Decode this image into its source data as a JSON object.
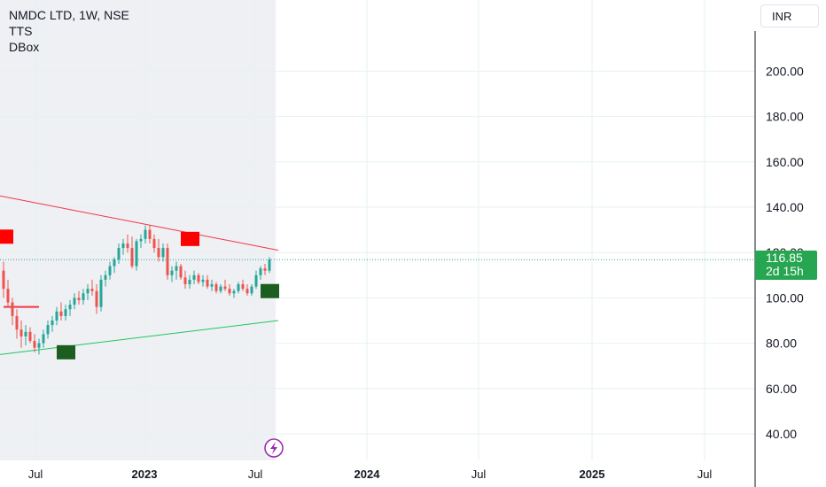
{
  "legend": {
    "title": "NMDC LTD, 1W, NSE",
    "indicator1": "TTS",
    "indicator2": "DBox"
  },
  "currency": "INR",
  "last_price": {
    "value": "116.85",
    "countdown": "2d 15h"
  },
  "colors": {
    "up": "#26a69a",
    "down": "#ef5350",
    "resistance": "#f23645",
    "support": "#22c55e",
    "box_red": "#ff0000",
    "box_green": "#1b5e20",
    "price_tag": "#26a650",
    "shade": "#eef0f3"
  },
  "icons": {
    "footer": "lightning-bolt-icon"
  },
  "chart_data": {
    "type": "candlestick",
    "y_ticks": [
      "40.00",
      "60.00",
      "80.00",
      "100.00",
      "120.00",
      "140.00",
      "160.00",
      "180.00",
      "200.00"
    ],
    "x_ticks": [
      "Jul",
      "2023",
      "Jul",
      "2024",
      "Jul",
      "2025",
      "Jul"
    ],
    "ylim": [
      30,
      210
    ],
    "last_price": 116.85,
    "candles": [
      [
        112,
        116,
        100,
        104
      ],
      [
        104,
        108,
        96,
        98
      ],
      [
        98,
        100,
        88,
        92
      ],
      [
        92,
        95,
        82,
        86
      ],
      [
        86,
        90,
        78,
        83
      ],
      [
        83,
        88,
        79,
        85
      ],
      [
        85,
        87,
        80,
        81
      ],
      [
        81,
        84,
        76,
        78
      ],
      [
        78,
        82,
        75,
        80
      ],
      [
        80,
        86,
        78,
        84
      ],
      [
        84,
        90,
        82,
        88
      ],
      [
        88,
        92,
        85,
        90
      ],
      [
        90,
        96,
        88,
        94
      ],
      [
        94,
        98,
        90,
        92
      ],
      [
        92,
        97,
        90,
        95
      ],
      [
        95,
        99,
        92,
        97
      ],
      [
        97,
        102,
        95,
        100
      ],
      [
        100,
        103,
        97,
        99
      ],
      [
        99,
        104,
        97,
        102
      ],
      [
        102,
        106,
        99,
        104
      ],
      [
        104,
        108,
        101,
        103
      ],
      [
        103,
        106,
        93,
        96
      ],
      [
        96,
        110,
        94,
        108
      ],
      [
        108,
        112,
        105,
        110
      ],
      [
        110,
        116,
        108,
        114
      ],
      [
        114,
        118,
        111,
        117
      ],
      [
        117,
        124,
        115,
        122
      ],
      [
        122,
        126,
        119,
        124
      ],
      [
        124,
        128,
        120,
        122
      ],
      [
        122,
        127,
        113,
        114
      ],
      [
        114,
        126,
        112,
        125
      ],
      [
        125,
        128,
        122,
        126
      ],
      [
        126,
        132,
        124,
        130
      ],
      [
        130,
        132,
        124,
        126
      ],
      [
        126,
        128,
        120,
        122
      ],
      [
        122,
        126,
        116,
        118
      ],
      [
        118,
        124,
        116,
        122
      ],
      [
        122,
        124,
        108,
        110
      ],
      [
        110,
        114,
        107,
        112
      ],
      [
        112,
        116,
        108,
        114
      ],
      [
        114,
        115,
        108,
        109
      ],
      [
        109,
        112,
        104,
        106
      ],
      [
        106,
        110,
        104,
        108
      ],
      [
        108,
        112,
        106,
        110
      ],
      [
        110,
        111,
        106,
        107
      ],
      [
        107,
        110,
        105,
        108
      ],
      [
        108,
        110,
        104,
        105
      ],
      [
        105,
        108,
        103,
        106
      ],
      [
        106,
        107,
        102,
        103
      ],
      [
        103,
        106,
        102,
        105
      ],
      [
        105,
        108,
        103,
        104
      ],
      [
        104,
        106,
        101,
        102
      ],
      [
        102,
        104,
        100,
        103
      ],
      [
        103,
        107,
        102,
        106
      ],
      [
        106,
        108,
        103,
        104
      ],
      [
        104,
        106,
        101,
        102
      ],
      [
        102,
        106,
        101,
        105
      ],
      [
        105,
        112,
        104,
        110
      ],
      [
        110,
        114,
        108,
        113
      ],
      [
        113,
        115,
        110,
        112
      ],
      [
        112,
        118,
        111,
        117
      ]
    ],
    "resistance_line": [
      [
        0,
        145
      ],
      [
        60,
        121
      ]
    ],
    "support_line": [
      [
        0,
        75
      ],
      [
        60,
        90
      ]
    ],
    "hline": {
      "y": 96,
      "from": 0,
      "to": 8
    },
    "boxes": [
      {
        "color": "red",
        "at": 0,
        "y": 127
      },
      {
        "color": "red",
        "at": 42,
        "y": 126
      },
      {
        "color": "green",
        "at": 14,
        "y": 76
      },
      {
        "color": "green",
        "at": 60,
        "y": 103
      }
    ]
  }
}
